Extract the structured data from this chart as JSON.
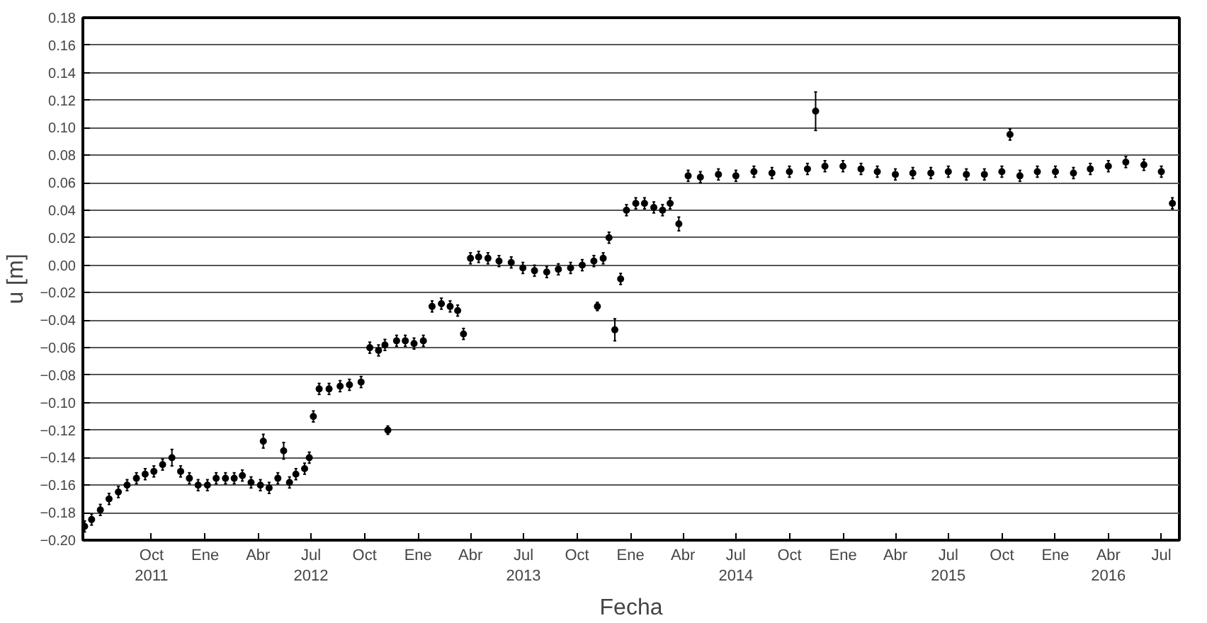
{
  "chart_data": {
    "type": "scatter",
    "xlabel": "Fecha",
    "ylabel": "u [m]",
    "xlim": [
      "2011-06-05",
      "2016-08-01"
    ],
    "ylim": [
      -0.2,
      0.18
    ],
    "yticks": [
      {
        "value": -0.2,
        "label": "−0.20"
      },
      {
        "value": -0.18,
        "label": "−0.18"
      },
      {
        "value": -0.16,
        "label": "−0.16"
      },
      {
        "value": -0.14,
        "label": "−0.14"
      },
      {
        "value": -0.12,
        "label": "−0.12"
      },
      {
        "value": -0.1,
        "label": "−0.10"
      },
      {
        "value": -0.08,
        "label": "−0.08"
      },
      {
        "value": -0.06,
        "label": "−0.06"
      },
      {
        "value": -0.04,
        "label": "−0.04"
      },
      {
        "value": -0.02,
        "label": "−0.02"
      },
      {
        "value": 0.0,
        "label": "0.00"
      },
      {
        "value": 0.02,
        "label": "0.02"
      },
      {
        "value": 0.04,
        "label": "0.04"
      },
      {
        "value": 0.06,
        "label": "0.06"
      },
      {
        "value": 0.08,
        "label": "0.08"
      },
      {
        "value": 0.1,
        "label": "0.10"
      },
      {
        "value": 0.12,
        "label": "0.12"
      },
      {
        "value": 0.14,
        "label": "0.14"
      },
      {
        "value": 0.16,
        "label": "0.16"
      },
      {
        "value": 0.18,
        "label": "0.18"
      }
    ],
    "xticks": [
      {
        "value": "2011-10-01",
        "label": "Oct\n2011"
      },
      {
        "value": "2012-01-01",
        "label": "Ene"
      },
      {
        "value": "2012-04-01",
        "label": "Abr"
      },
      {
        "value": "2012-07-01",
        "label": "Jul\n2012"
      },
      {
        "value": "2012-10-01",
        "label": "Oct"
      },
      {
        "value": "2013-01-01",
        "label": "Ene"
      },
      {
        "value": "2013-04-01",
        "label": "Abr"
      },
      {
        "value": "2013-07-01",
        "label": "Jul\n2013"
      },
      {
        "value": "2013-10-01",
        "label": "Oct"
      },
      {
        "value": "2014-01-01",
        "label": "Ene"
      },
      {
        "value": "2014-04-01",
        "label": "Abr"
      },
      {
        "value": "2014-07-01",
        "label": "Jul\n2014"
      },
      {
        "value": "2014-10-01",
        "label": "Oct"
      },
      {
        "value": "2015-01-01",
        "label": "Ene"
      },
      {
        "value": "2015-04-01",
        "label": "Abr"
      },
      {
        "value": "2015-07-01",
        "label": "Jul\n2015"
      },
      {
        "value": "2015-10-01",
        "label": "Oct"
      },
      {
        "value": "2016-01-01",
        "label": "Ene"
      },
      {
        "value": "2016-04-01",
        "label": "Abr\n2016"
      },
      {
        "value": "2016-07-01",
        "label": "Jul"
      }
    ],
    "grid": "y",
    "marker": "circle",
    "series": [
      {
        "color": "#000000",
        "x": [
          "2011-06-08",
          "2011-06-20",
          "2011-07-05",
          "2011-07-20",
          "2011-08-05",
          "2011-08-20",
          "2011-09-05",
          "2011-09-20",
          "2011-10-05",
          "2011-10-20",
          "2011-11-05",
          "2011-11-20",
          "2011-12-05",
          "2011-12-20",
          "2012-01-05",
          "2012-01-20",
          "2012-02-05",
          "2012-02-20",
          "2012-03-05",
          "2012-03-20",
          "2012-04-05",
          "2012-04-10",
          "2012-04-20",
          "2012-05-05",
          "2012-05-15",
          "2012-05-25",
          "2012-06-05",
          "2012-06-20",
          "2012-06-28",
          "2012-07-05",
          "2012-07-15",
          "2012-08-01",
          "2012-08-20",
          "2012-09-05",
          "2012-09-25",
          "2012-10-10",
          "2012-10-25",
          "2012-11-05",
          "2012-11-10",
          "2012-11-25",
          "2012-12-10",
          "2012-12-25",
          "2013-01-10",
          "2013-01-25",
          "2013-02-10",
          "2013-02-25",
          "2013-03-10",
          "2013-03-20",
          "2013-04-01",
          "2013-04-15",
          "2013-05-01",
          "2013-05-20",
          "2013-06-10",
          "2013-06-30",
          "2013-07-20",
          "2013-08-10",
          "2013-08-30",
          "2013-09-20",
          "2013-10-10",
          "2013-10-30",
          "2013-11-05",
          "2013-11-15",
          "2013-11-25",
          "2013-12-05",
          "2013-12-15",
          "2013-12-25",
          "2014-01-10",
          "2014-01-25",
          "2014-02-10",
          "2014-02-25",
          "2014-03-10",
          "2014-03-25",
          "2014-04-10",
          "2014-05-01",
          "2014-06-01",
          "2014-07-01",
          "2014-08-01",
          "2014-09-01",
          "2014-10-01",
          "2014-11-01",
          "2014-11-15",
          "2014-12-01",
          "2015-01-01",
          "2015-02-01",
          "2015-03-01",
          "2015-04-01",
          "2015-05-01",
          "2015-06-01",
          "2015-07-01",
          "2015-08-01",
          "2015-09-01",
          "2015-10-01",
          "2015-10-15",
          "2015-11-01",
          "2015-12-01",
          "2016-01-01",
          "2016-02-01",
          "2016-03-01",
          "2016-04-01",
          "2016-05-01",
          "2016-06-01",
          "2016-07-01",
          "2016-07-20"
        ],
        "values": [
          -0.19,
          -0.185,
          -0.178,
          -0.17,
          -0.165,
          -0.16,
          -0.155,
          -0.152,
          -0.15,
          -0.145,
          -0.14,
          -0.15,
          -0.155,
          -0.16,
          -0.16,
          -0.155,
          -0.155,
          -0.155,
          -0.153,
          -0.158,
          -0.16,
          -0.128,
          -0.162,
          -0.155,
          -0.135,
          -0.158,
          -0.152,
          -0.148,
          -0.14,
          -0.11,
          -0.09,
          -0.09,
          -0.088,
          -0.087,
          -0.085,
          -0.06,
          -0.062,
          -0.058,
          -0.12,
          -0.055,
          -0.055,
          -0.057,
          -0.055,
          -0.03,
          -0.028,
          -0.03,
          -0.033,
          -0.05,
          0.005,
          0.006,
          0.005,
          0.003,
          0.002,
          -0.002,
          -0.004,
          -0.005,
          -0.003,
          -0.002,
          0.0,
          0.003,
          -0.03,
          0.005,
          0.02,
          -0.047,
          -0.01,
          0.04,
          0.045,
          0.045,
          0.042,
          0.04,
          0.045,
          0.03,
          0.065,
          0.064,
          0.066,
          0.065,
          0.068,
          0.067,
          0.068,
          0.07,
          0.112,
          0.072,
          0.072,
          0.07,
          0.068,
          0.066,
          0.067,
          0.067,
          0.068,
          0.066,
          0.066,
          0.068,
          0.095,
          0.065,
          0.068,
          0.068,
          0.067,
          0.07,
          0.072,
          0.075,
          0.073,
          0.068,
          0.045
        ],
        "errors": [
          0.004,
          0.004,
          0.004,
          0.004,
          0.004,
          0.004,
          0.004,
          0.004,
          0.004,
          0.004,
          0.006,
          0.004,
          0.004,
          0.004,
          0.004,
          0.004,
          0.004,
          0.004,
          0.004,
          0.004,
          0.004,
          0.005,
          0.004,
          0.004,
          0.006,
          0.004,
          0.004,
          0.004,
          0.004,
          0.004,
          0.004,
          0.004,
          0.004,
          0.004,
          0.004,
          0.004,
          0.004,
          0.004,
          0.003,
          0.004,
          0.004,
          0.004,
          0.004,
          0.004,
          0.004,
          0.004,
          0.004,
          0.004,
          0.004,
          0.004,
          0.004,
          0.004,
          0.004,
          0.004,
          0.004,
          0.004,
          0.004,
          0.004,
          0.004,
          0.004,
          0.003,
          0.004,
          0.004,
          0.008,
          0.004,
          0.004,
          0.004,
          0.004,
          0.004,
          0.004,
          0.004,
          0.005,
          0.004,
          0.004,
          0.004,
          0.004,
          0.004,
          0.004,
          0.004,
          0.004,
          0.014,
          0.004,
          0.004,
          0.004,
          0.004,
          0.004,
          0.004,
          0.004,
          0.004,
          0.004,
          0.004,
          0.004,
          0.004,
          0.004,
          0.004,
          0.004,
          0.004,
          0.004,
          0.004,
          0.004,
          0.004,
          0.004,
          0.004
        ]
      }
    ]
  }
}
